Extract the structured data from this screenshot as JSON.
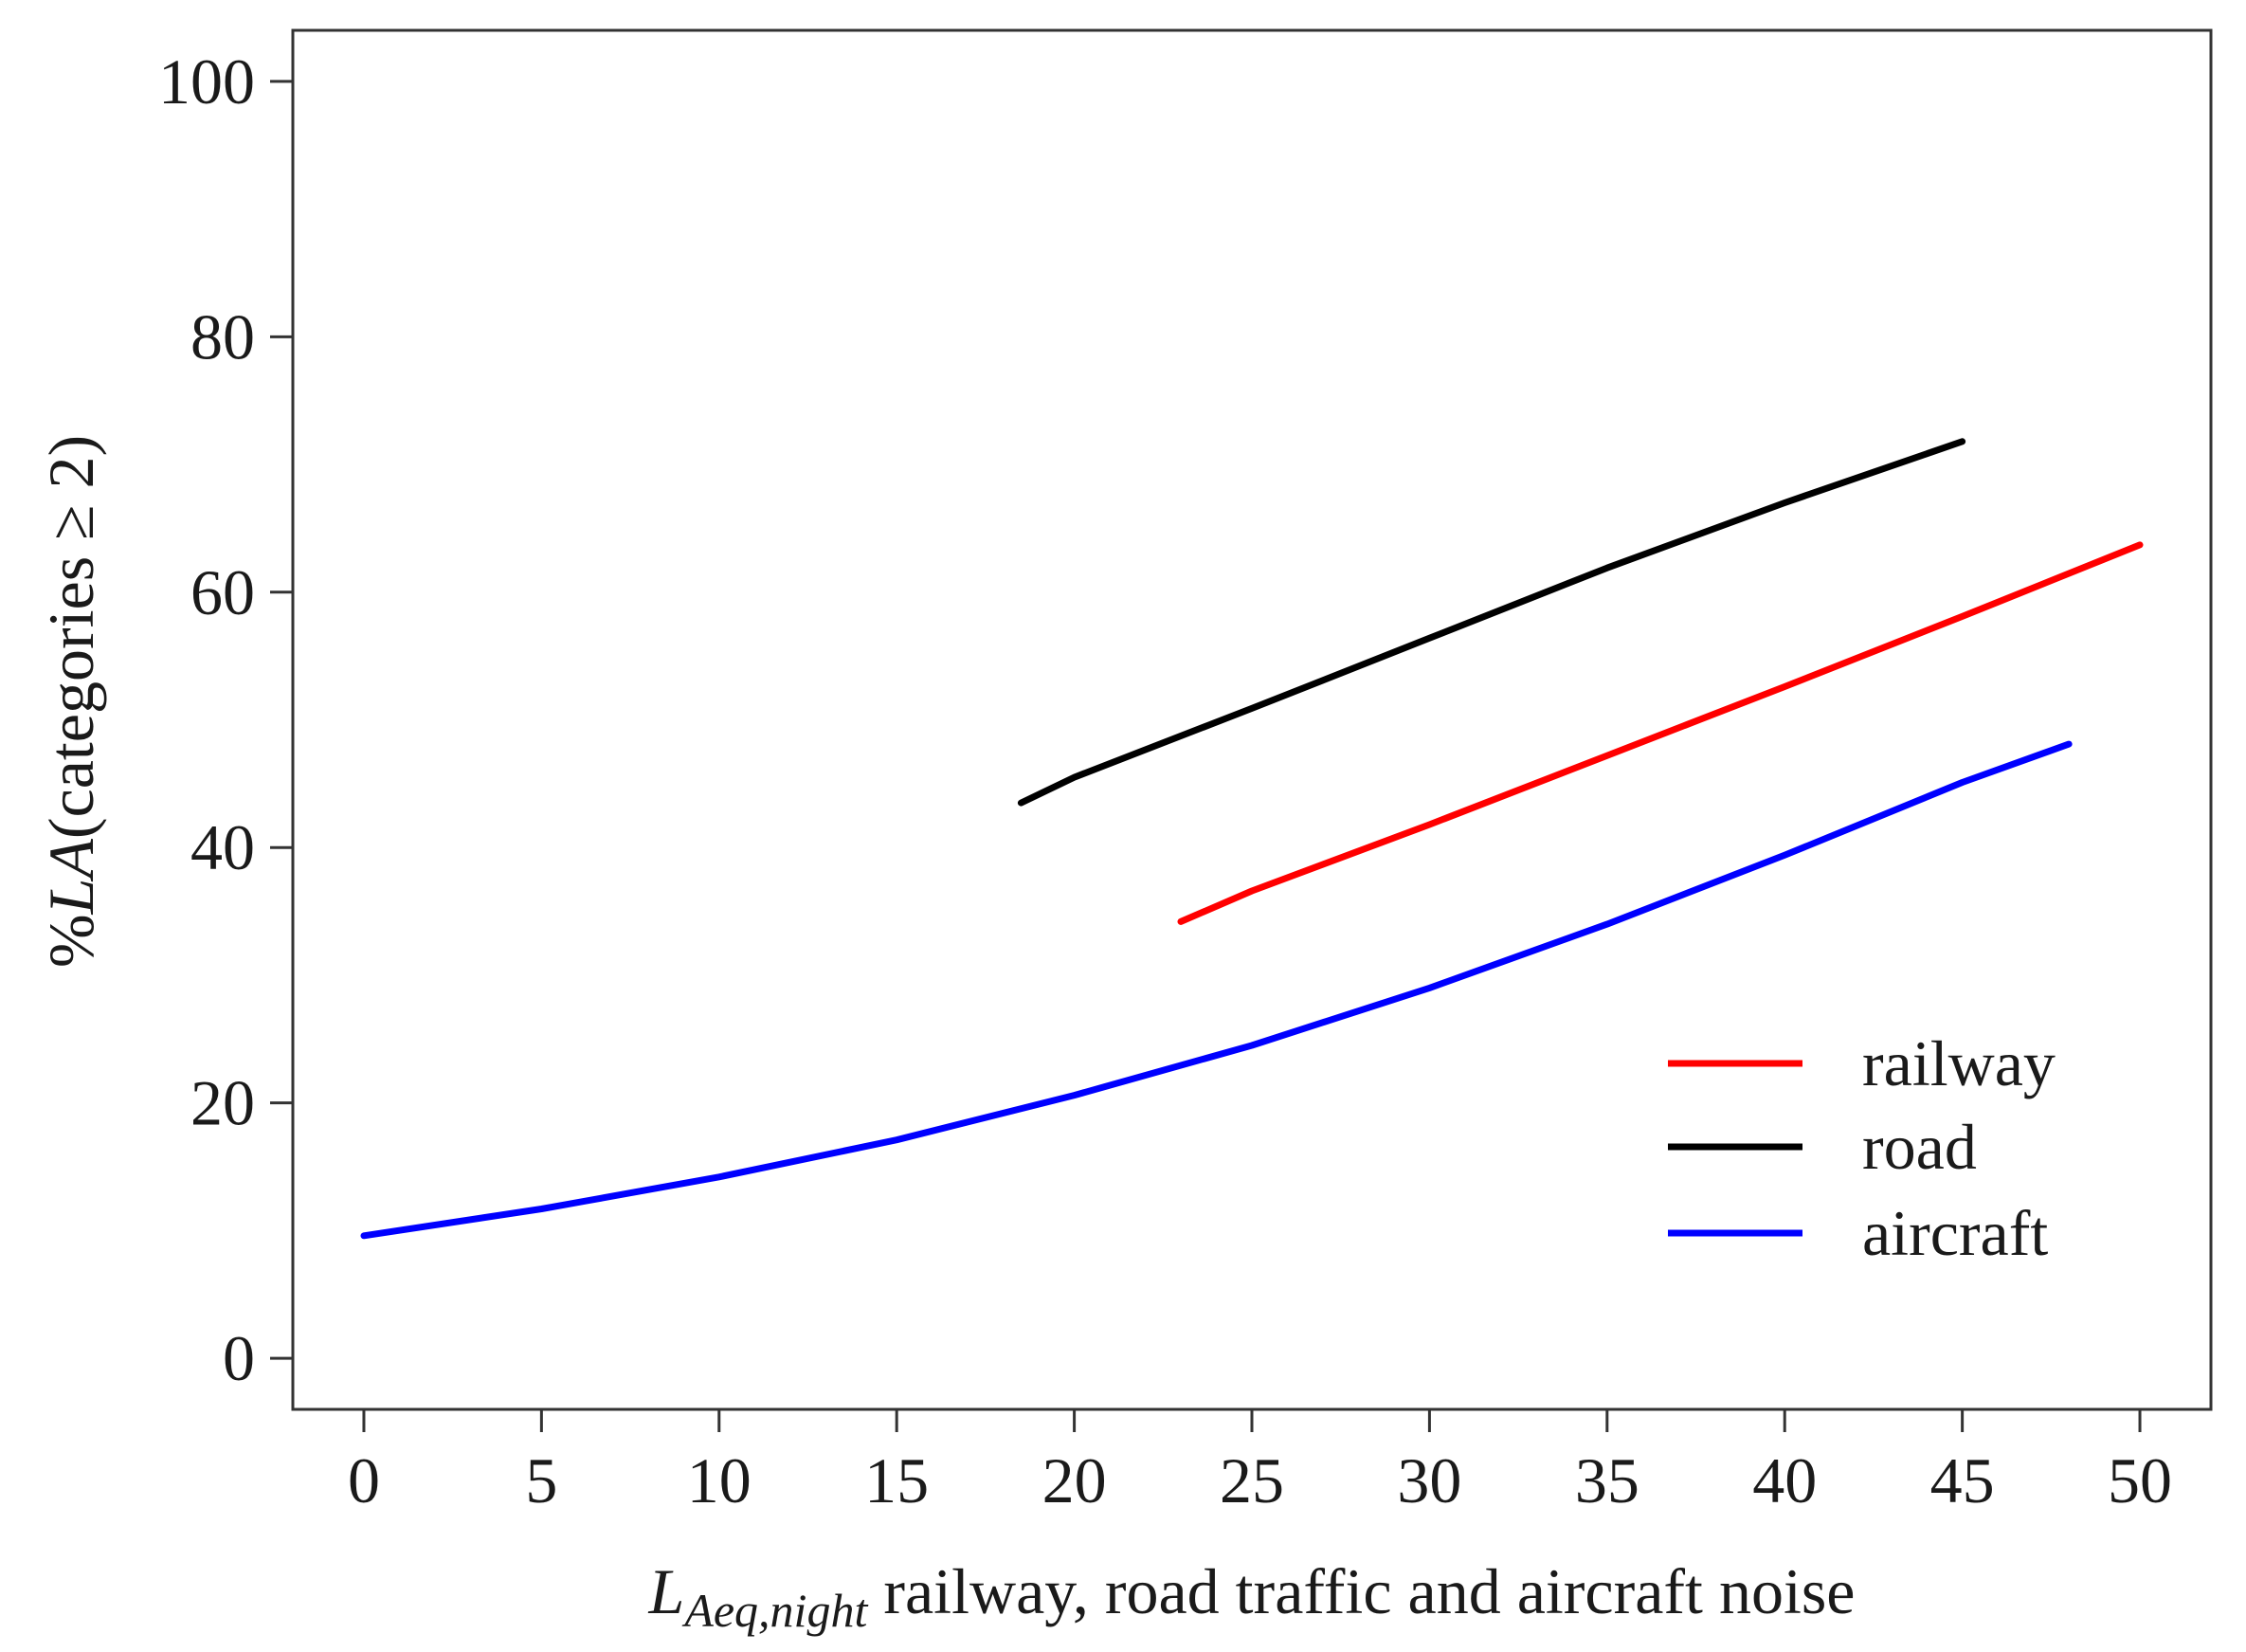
{
  "chart_data": {
    "type": "line",
    "title": "",
    "xlabel": {
      "main": "L",
      "subscript": "Aeq,night",
      "rest": " railway, road traffic and aircraft noise"
    },
    "ylabel": {
      "prefix": "%",
      "italic": "LA",
      "rest": "(categories ≥ 2)"
    },
    "xlim": [
      -2,
      52
    ],
    "ylim": [
      -4,
      104
    ],
    "xticks": [
      0,
      5,
      10,
      15,
      20,
      25,
      30,
      35,
      40,
      45,
      50
    ],
    "xtick_labels": [
      "0",
      "5",
      "10",
      "15",
      "20",
      "25",
      "30",
      "35",
      "40",
      "45",
      "50"
    ],
    "yticks": [
      0,
      20,
      40,
      60,
      80,
      100
    ],
    "ytick_labels": [
      "0",
      "20",
      "40",
      "60",
      "80",
      "100"
    ],
    "grid": false,
    "legend_position": "bottom-right",
    "series": [
      {
        "name": "railway",
        "color": "#ff0000",
        "x": [
          23,
          25,
          30,
          35,
          40,
          45,
          50
        ],
        "y": [
          34.2,
          36.6,
          41.8,
          47.2,
          52.6,
          58.1,
          63.7
        ]
      },
      {
        "name": "road",
        "color": "#000000",
        "x": [
          18.5,
          20,
          25,
          30,
          35,
          40,
          45
        ],
        "y": [
          43.5,
          45.5,
          50.9,
          56.4,
          61.9,
          67.0,
          71.8
        ]
      },
      {
        "name": "aircraft",
        "color": "#0000ff",
        "x": [
          0,
          5,
          10,
          15,
          20,
          25,
          30,
          35,
          40,
          45,
          48
        ],
        "y": [
          9.6,
          11.7,
          14.2,
          17.1,
          20.6,
          24.5,
          29.0,
          34.0,
          39.4,
          45.1,
          48.1
        ]
      }
    ]
  }
}
